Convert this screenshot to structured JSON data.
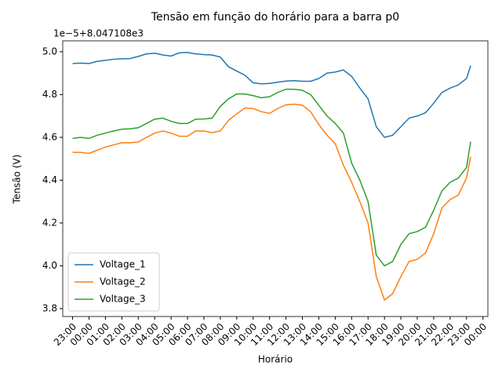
{
  "chart_data": {
    "type": "line",
    "title": "Tensão em função do horário para a barra p0",
    "x_label": "Horário",
    "y_label": "Tensão (V)",
    "y_offset_label": "1e−5+8.047108e3",
    "x": [
      -1,
      -0.5,
      0,
      0.5,
      1,
      1.5,
      2,
      2.5,
      3,
      3.5,
      4,
      4.5,
      5,
      5.5,
      6,
      6.5,
      7,
      7.5,
      8,
      8.5,
      9,
      9.5,
      10,
      10.5,
      11,
      11.5,
      12,
      12.5,
      13,
      13.5,
      14,
      14.5,
      15,
      15.5,
      16,
      16.5,
      17,
      17.5,
      18,
      18.5,
      19,
      19.5,
      20,
      20.5,
      21,
      21.5,
      22,
      22.5,
      23,
      23.25
    ],
    "series": [
      {
        "name": "Voltage_1",
        "color": "#1f77b4",
        "values": [
          4.945,
          4.947,
          4.945,
          4.955,
          4.96,
          4.965,
          4.967,
          4.968,
          4.978,
          4.99,
          4.993,
          4.985,
          4.98,
          4.995,
          4.997,
          4.99,
          4.987,
          4.985,
          4.975,
          4.93,
          4.91,
          4.89,
          4.855,
          4.85,
          4.852,
          4.858,
          4.863,
          4.865,
          4.862,
          4.862,
          4.875,
          4.9,
          4.905,
          4.915,
          4.885,
          4.83,
          4.78,
          4.65,
          4.6,
          4.61,
          4.65,
          4.69,
          4.7,
          4.715,
          4.76,
          4.81,
          4.83,
          4.845,
          4.875,
          4.935
        ]
      },
      {
        "name": "Voltage_2",
        "color": "#ff7f0e",
        "values": [
          4.53,
          4.53,
          4.525,
          4.54,
          4.555,
          4.565,
          4.575,
          4.575,
          4.578,
          4.6,
          4.62,
          4.63,
          4.62,
          4.605,
          4.605,
          4.63,
          4.63,
          4.622,
          4.63,
          4.68,
          4.71,
          4.737,
          4.735,
          4.72,
          4.712,
          4.735,
          4.752,
          4.755,
          4.75,
          4.72,
          4.66,
          4.61,
          4.57,
          4.47,
          4.39,
          4.3,
          4.2,
          3.95,
          3.84,
          3.87,
          3.95,
          4.02,
          4.03,
          4.06,
          4.15,
          4.27,
          4.31,
          4.33,
          4.41,
          4.51
        ]
      },
      {
        "name": "Voltage_3",
        "color": "#2ca02c",
        "values": [
          4.595,
          4.6,
          4.595,
          4.61,
          4.62,
          4.63,
          4.638,
          4.64,
          4.645,
          4.665,
          4.685,
          4.69,
          4.675,
          4.665,
          4.665,
          4.685,
          4.686,
          4.69,
          4.745,
          4.78,
          4.803,
          4.803,
          4.795,
          4.785,
          4.79,
          4.81,
          4.825,
          4.825,
          4.82,
          4.8,
          4.75,
          4.7,
          4.665,
          4.62,
          4.48,
          4.4,
          4.3,
          4.05,
          4.0,
          4.02,
          4.1,
          4.15,
          4.16,
          4.18,
          4.26,
          4.35,
          4.39,
          4.41,
          4.46,
          4.58
        ]
      }
    ],
    "xlim": [
      -1.6,
      24.3
    ],
    "ylim": [
      3.763,
      5.051
    ],
    "xticks": [
      {
        "value": -1,
        "label": "23:00"
      },
      {
        "value": 0,
        "label": "00:00"
      },
      {
        "value": 1,
        "label": "01:00"
      },
      {
        "value": 2,
        "label": "02:00"
      },
      {
        "value": 3,
        "label": "03:00"
      },
      {
        "value": 4,
        "label": "04:00"
      },
      {
        "value": 5,
        "label": "05:00"
      },
      {
        "value": 6,
        "label": "06:00"
      },
      {
        "value": 7,
        "label": "07:00"
      },
      {
        "value": 8,
        "label": "08:00"
      },
      {
        "value": 9,
        "label": "09:00"
      },
      {
        "value": 10,
        "label": "10:00"
      },
      {
        "value": 11,
        "label": "11:00"
      },
      {
        "value": 12,
        "label": "12:00"
      },
      {
        "value": 13,
        "label": "13:00"
      },
      {
        "value": 14,
        "label": "14:00"
      },
      {
        "value": 15,
        "label": "15:00"
      },
      {
        "value": 16,
        "label": "16:00"
      },
      {
        "value": 17,
        "label": "17:00"
      },
      {
        "value": 18,
        "label": "18:00"
      },
      {
        "value": 19,
        "label": "19:00"
      },
      {
        "value": 20,
        "label": "20:00"
      },
      {
        "value": 21,
        "label": "21:00"
      },
      {
        "value": 22,
        "label": "22:00"
      },
      {
        "value": 23,
        "label": "23:00"
      },
      {
        "value": 24,
        "label": "00:00"
      }
    ],
    "yticks": [
      3.8,
      {
        "value": 4,
        "label": "4.0"
      },
      4.2,
      4.4,
      4.6,
      4.8,
      {
        "value": 5,
        "label": "5.0"
      }
    ],
    "legend": "lower left",
    "grid": false
  }
}
